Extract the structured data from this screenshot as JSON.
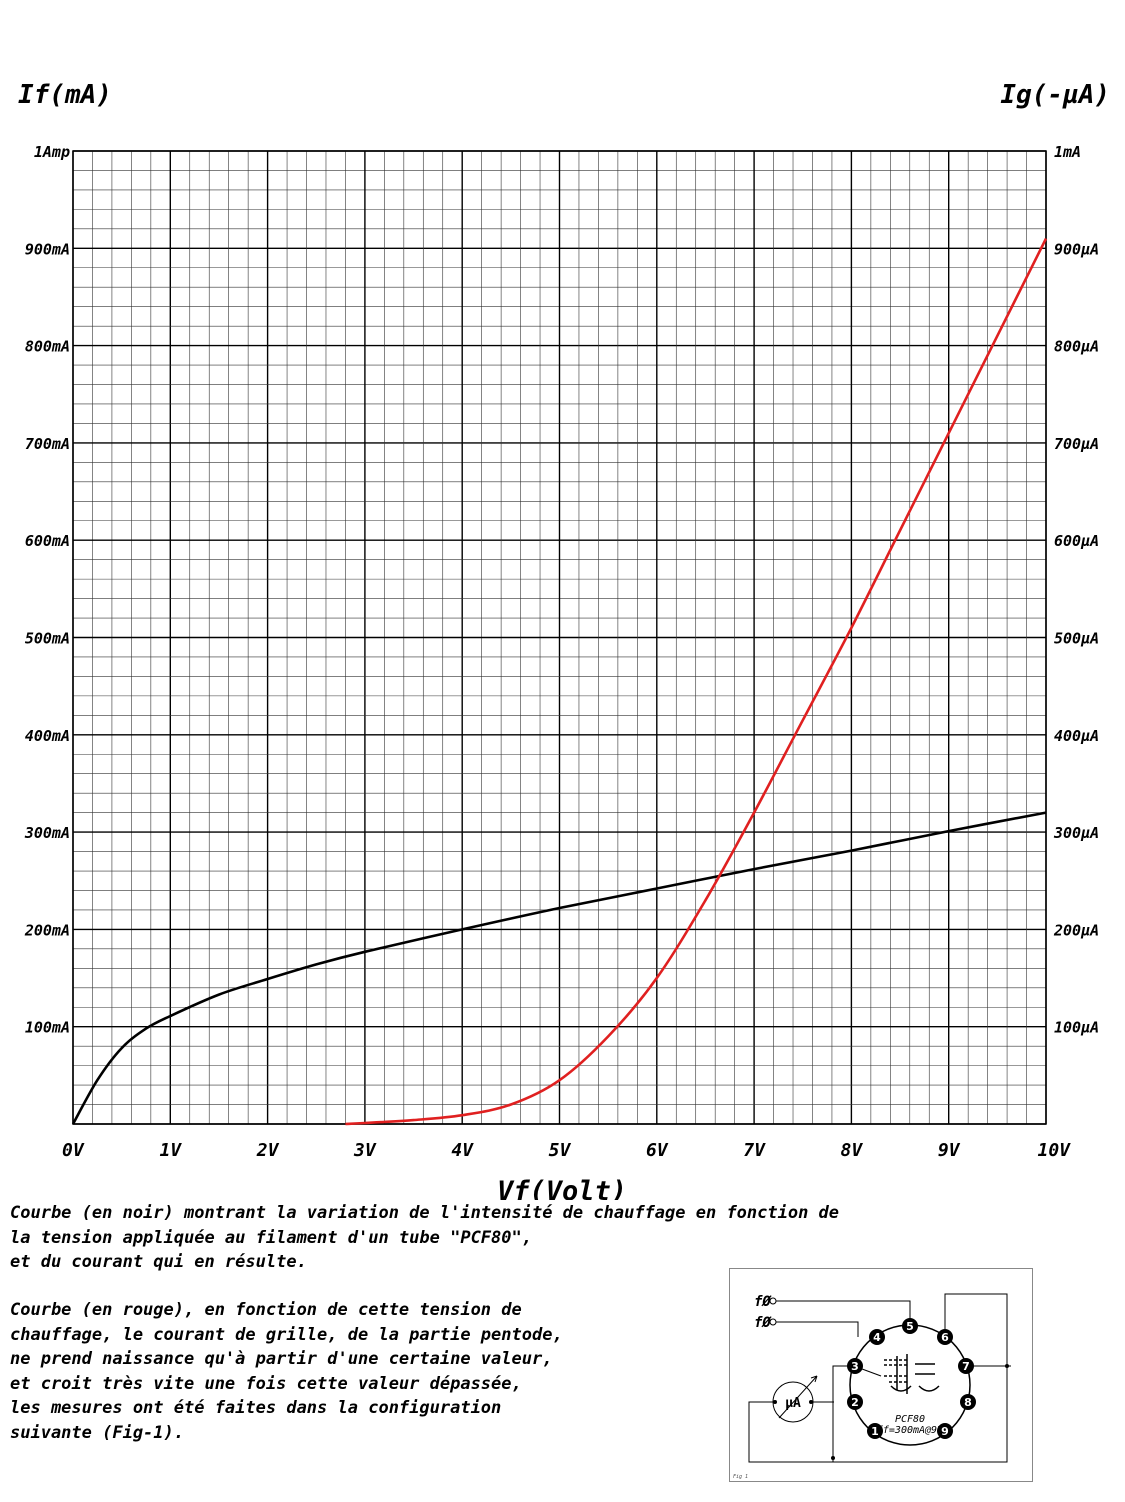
{
  "chart_data": {
    "type": "line",
    "ylabel_left": "If(mA)",
    "ylabel_right": "Ig(-µA)",
    "xlabel": "Vf(Volt)",
    "xlim": [
      0,
      10
    ],
    "ylim": [
      0,
      1000
    ],
    "grid": true,
    "x_ticks": [
      "0V",
      "1V",
      "2V",
      "3V",
      "4V",
      "5V",
      "6V",
      "7V",
      "8V",
      "9V",
      "10V"
    ],
    "y_ticks_left": [
      "1Amp",
      "900mA",
      "800mA",
      "700mA",
      "600mA",
      "500mA",
      "400mA",
      "300mA",
      "200mA",
      "100mA"
    ],
    "y_ticks_right": [
      "1mA",
      "900µA",
      "800µA",
      "700µA",
      "600µA",
      "500µA",
      "400µA",
      "300µA",
      "200µA",
      "100µA"
    ],
    "series": [
      {
        "color": "#000000",
        "x": [
          0,
          0.25,
          0.5,
          0.75,
          1,
          1.5,
          2,
          2.5,
          3,
          4,
          5,
          6,
          7,
          8,
          9,
          10
        ],
        "y": [
          0,
          45,
          78,
          98,
          111,
          133,
          149,
          164,
          177,
          200,
          222,
          242,
          262,
          281,
          301,
          320
        ]
      },
      {
        "color": "#e02020",
        "x": [
          2.8,
          3,
          3.5,
          4,
          4.5,
          5,
          5.5,
          6,
          6.5,
          7,
          7.5,
          8,
          8.5,
          9,
          9.5,
          10
        ],
        "y": [
          0,
          1,
          4,
          9,
          20,
          45,
          90,
          150,
          230,
          320,
          415,
          510,
          610,
          710,
          810,
          910
        ]
      }
    ]
  },
  "caption": {
    "paragraph_1": "Courbe (en noir) montrant la variation de l'intensité de chauffage en fonction de\nla tension appliquée au filament d'un tube \"PCF80\",\net du courant qui en résulte.",
    "paragraph_2": "Courbe (en rouge), en fonction de cette tension de\nchauffage, le courant de grille, de la partie pentode,\nne prend naissance qu'à partir d'une certaine valeur,\net croit très vite une fois cette valeur dépassée,\nles mesures ont été faites dans la configuration\nsuivante (Fig-1)."
  },
  "figure": {
    "filament_label_1": "fØ",
    "filament_label_2": "fØ",
    "meter_label": "µA",
    "tube_name": "PCF80",
    "tube_spec": "ff=300mA@9V",
    "pins": [
      "1",
      "2",
      "3",
      "4",
      "5",
      "6",
      "7",
      "8",
      "9"
    ],
    "fig_label": "Fig 1"
  }
}
